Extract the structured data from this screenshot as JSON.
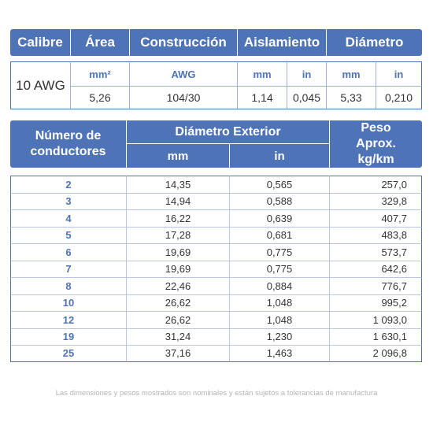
{
  "spec": {
    "headers": [
      "Calibre",
      "Área",
      "Construcción",
      "Aislamiento",
      "Diámetro"
    ],
    "calibre": "10 AWG",
    "units": {
      "area": "mm²",
      "construccion": "AWG",
      "aislamiento_mm": "mm",
      "aislamiento_in": "in",
      "diametro_mm": "mm",
      "diametro_in": "in"
    },
    "values": {
      "area": "5,26",
      "construccion": "104/30",
      "aislamiento_mm": "1,14",
      "aislamiento_in": "0,045",
      "diametro_mm": "5,33",
      "diametro_in": "0,210"
    }
  },
  "conductors": {
    "headers": {
      "numero": "Número de conductores",
      "diametro": "Diámetro Exterior",
      "mm": "mm",
      "in": "in",
      "peso": "Peso Aprox. kg/km"
    },
    "rows": [
      {
        "n": "2",
        "mm": "14,35",
        "in": "0,565",
        "peso": "257,0"
      },
      {
        "n": "3",
        "mm": "14,94",
        "in": "0,588",
        "peso": "329,8"
      },
      {
        "n": "4",
        "mm": "16,22",
        "in": "0,639",
        "peso": "407,7"
      },
      {
        "n": "5",
        "mm": "17,28",
        "in": "0,681",
        "peso": "483,8"
      },
      {
        "n": "6",
        "mm": "19,69",
        "in": "0,775",
        "peso": "573,7"
      },
      {
        "n": "7",
        "mm": "19,69",
        "in": "0,775",
        "peso": "642,6"
      },
      {
        "n": "8",
        "mm": "22,46",
        "in": "0,884",
        "peso": "776,7"
      },
      {
        "n": "10",
        "mm": "26,62",
        "in": "1,048",
        "peso": "995,2"
      },
      {
        "n": "12",
        "mm": "26,62",
        "in": "1,048",
        "peso": "1 093,0"
      },
      {
        "n": "19",
        "mm": "31,24",
        "in": "1,230",
        "peso": "1 630,1"
      },
      {
        "n": "25",
        "mm": "37,16",
        "in": "1,463",
        "peso": "2 096,8"
      }
    ]
  },
  "footnote": "Las dimensiones y pesos mostrados son nominales y están sujetos a tolerancias de manufactura",
  "colors": {
    "header_bg": "#4f73b7",
    "accent_text": "#4f73b7"
  }
}
